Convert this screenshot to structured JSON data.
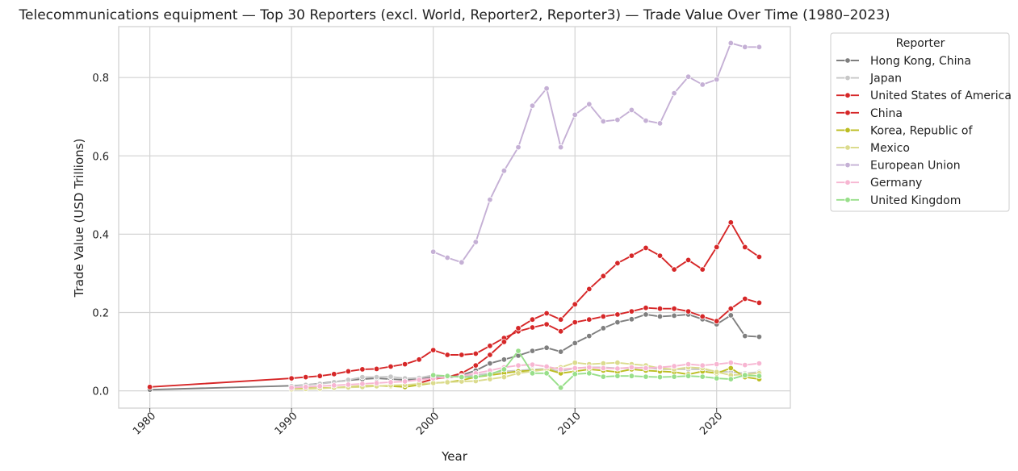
{
  "chart_data": {
    "type": "line",
    "title": "Telecommunications equipment — Top 30 Reporters (excl. World, Reporter2, Reporter3) — Trade Value Over Time (1980–2023)",
    "xlabel": "Year",
    "ylabel": "Trade Value (USD Trillions)",
    "xlim": [
      1977.8,
      2025.2
    ],
    "ylim": [
      -0.044,
      0.93
    ],
    "x_ticks": [
      1980,
      1990,
      2000,
      2010,
      2020
    ],
    "x_tick_labels": [
      "1980",
      "1990",
      "2000",
      "2010",
      "2020"
    ],
    "y_ticks": [
      0.0,
      0.2,
      0.4,
      0.6,
      0.8
    ],
    "y_tick_labels": [
      "0.0",
      "0.2",
      "0.4",
      "0.6",
      "0.8"
    ],
    "grid": true,
    "legend": {
      "title": "Reporter",
      "placement": "outside-top-right"
    },
    "series": [
      {
        "name": "Hong Kong, China",
        "color": "#7f7f7f",
        "x": [
          1980,
          1990,
          1991,
          1992,
          1993,
          1994,
          1995,
          1996,
          1997,
          1998,
          1999,
          2000,
          2001,
          2002,
          2003,
          2004,
          2005,
          2006,
          2007,
          2008,
          2009,
          2010,
          2011,
          2012,
          2013,
          2014,
          2015,
          2016,
          2017,
          2018,
          2019,
          2020,
          2021,
          2022,
          2023
        ],
        "y": [
          0.003,
          0.013,
          0.015,
          0.019,
          0.023,
          0.027,
          0.03,
          0.032,
          0.03,
          0.028,
          0.03,
          0.035,
          0.033,
          0.04,
          0.052,
          0.07,
          0.08,
          0.09,
          0.102,
          0.11,
          0.1,
          0.122,
          0.14,
          0.16,
          0.175,
          0.183,
          0.195,
          0.19,
          0.192,
          0.195,
          0.183,
          0.17,
          0.193,
          0.14,
          0.138
        ]
      },
      {
        "name": "Japan",
        "color": "#c7c7c7",
        "x": [
          1990,
          1991,
          1992,
          1993,
          1994,
          1995,
          1996,
          1997,
          1998,
          1999,
          2000,
          2001,
          2002,
          2003,
          2004,
          2005,
          2006,
          2007,
          2008,
          2009,
          2010,
          2011,
          2012,
          2013,
          2014,
          2015,
          2016,
          2017,
          2018,
          2019,
          2020,
          2021,
          2022,
          2023
        ],
        "y": [
          0.012,
          0.015,
          0.018,
          0.022,
          0.028,
          0.035,
          0.035,
          0.036,
          0.032,
          0.033,
          0.04,
          0.037,
          0.036,
          0.04,
          0.045,
          0.05,
          0.052,
          0.055,
          0.056,
          0.05,
          0.058,
          0.06,
          0.06,
          0.058,
          0.058,
          0.06,
          0.055,
          0.055,
          0.055,
          0.055,
          0.05,
          0.048,
          0.045,
          0.048
        ]
      },
      {
        "name": "United States of America",
        "color": "#d62728",
        "x": [
          1980,
          1990,
          1991,
          1992,
          1993,
          1994,
          1995,
          1996,
          1997,
          1998,
          1999,
          2000,
          2001,
          2002,
          2003,
          2004,
          2005,
          2006,
          2007,
          2008,
          2009,
          2010,
          2011,
          2012,
          2013,
          2014,
          2015,
          2016,
          2017,
          2018,
          2019,
          2020,
          2021,
          2022,
          2023
        ],
        "y": [
          0.01,
          0.032,
          0.035,
          0.038,
          0.043,
          0.05,
          0.055,
          0.056,
          0.062,
          0.068,
          0.08,
          0.104,
          0.092,
          0.092,
          0.095,
          0.115,
          0.135,
          0.152,
          0.162,
          0.17,
          0.152,
          0.175,
          0.182,
          0.19,
          0.195,
          0.203,
          0.212,
          0.21,
          0.21,
          0.203,
          0.19,
          0.178,
          0.21,
          0.235,
          0.225
        ]
      },
      {
        "name": "China",
        "color": "#d62728",
        "x": [
          1999,
          2000,
          2001,
          2002,
          2003,
          2004,
          2005,
          2006,
          2007,
          2008,
          2009,
          2010,
          2011,
          2012,
          2013,
          2014,
          2015,
          2016,
          2017,
          2018,
          2019,
          2020,
          2021,
          2022,
          2023
        ],
        "y": [
          0.02,
          0.03,
          0.035,
          0.045,
          0.065,
          0.092,
          0.125,
          0.16,
          0.182,
          0.198,
          0.182,
          0.221,
          0.26,
          0.293,
          0.326,
          0.345,
          0.365,
          0.345,
          0.31,
          0.334,
          0.31,
          0.367,
          0.43,
          0.367,
          0.342
        ]
      },
      {
        "name": "Korea, Republic of",
        "color": "#bcbd22",
        "x": [
          1990,
          1991,
          1992,
          1993,
          1994,
          1995,
          1996,
          1997,
          1998,
          1999,
          2000,
          2001,
          2002,
          2003,
          2004,
          2005,
          2006,
          2007,
          2008,
          2009,
          2010,
          2011,
          2012,
          2013,
          2014,
          2015,
          2016,
          2017,
          2018,
          2019,
          2020,
          2021,
          2022,
          2023
        ],
        "y": [
          0.005,
          0.006,
          0.007,
          0.008,
          0.01,
          0.012,
          0.013,
          0.012,
          0.01,
          0.015,
          0.02,
          0.022,
          0.027,
          0.035,
          0.04,
          0.045,
          0.05,
          0.052,
          0.055,
          0.045,
          0.05,
          0.055,
          0.052,
          0.048,
          0.055,
          0.052,
          0.05,
          0.048,
          0.042,
          0.05,
          0.045,
          0.058,
          0.035,
          0.03
        ]
      },
      {
        "name": "Mexico",
        "color": "#dbdb8d",
        "x": [
          1990,
          1991,
          1992,
          1993,
          1994,
          1995,
          1996,
          1997,
          1998,
          1999,
          2000,
          2001,
          2002,
          2003,
          2004,
          2005,
          2006,
          2007,
          2008,
          2009,
          2010,
          2011,
          2012,
          2013,
          2014,
          2015,
          2016,
          2017,
          2018,
          2019,
          2020,
          2021,
          2022,
          2023
        ],
        "y": [
          0.004,
          0.005,
          0.006,
          0.008,
          0.009,
          0.01,
          0.012,
          0.014,
          0.015,
          0.018,
          0.02,
          0.022,
          0.024,
          0.025,
          0.03,
          0.035,
          0.045,
          0.05,
          0.055,
          0.06,
          0.072,
          0.068,
          0.07,
          0.072,
          0.068,
          0.065,
          0.058,
          0.055,
          0.06,
          0.058,
          0.048,
          0.04,
          0.042,
          0.045
        ]
      },
      {
        "name": "European Union",
        "color": "#c5b0d5",
        "x": [
          2000,
          2001,
          2002,
          2003,
          2004,
          2005,
          2006,
          2007,
          2008,
          2009,
          2010,
          2011,
          2012,
          2013,
          2014,
          2015,
          2016,
          2017,
          2018,
          2019,
          2020,
          2021,
          2022,
          2023
        ],
        "y": [
          0.355,
          0.34,
          0.328,
          0.38,
          0.488,
          0.562,
          0.622,
          0.728,
          0.772,
          0.622,
          0.705,
          0.732,
          0.688,
          0.692,
          0.717,
          0.69,
          0.683,
          0.76,
          0.802,
          0.782,
          0.795,
          0.888,
          0.878,
          0.878
        ]
      },
      {
        "name": "Germany",
        "color": "#f7b6d2",
        "x": [
          1990,
          1991,
          1992,
          1993,
          1994,
          1995,
          1996,
          1997,
          1998,
          1999,
          2000,
          2001,
          2002,
          2003,
          2004,
          2005,
          2006,
          2007,
          2008,
          2009,
          2010,
          2011,
          2012,
          2013,
          2014,
          2015,
          2016,
          2017,
          2018,
          2019,
          2020,
          2021,
          2022,
          2023
        ],
        "y": [
          0.008,
          0.01,
          0.012,
          0.014,
          0.016,
          0.018,
          0.02,
          0.022,
          0.024,
          0.028,
          0.032,
          0.035,
          0.038,
          0.045,
          0.052,
          0.06,
          0.065,
          0.067,
          0.062,
          0.055,
          0.058,
          0.06,
          0.058,
          0.057,
          0.06,
          0.058,
          0.06,
          0.063,
          0.068,
          0.065,
          0.068,
          0.072,
          0.066,
          0.07
        ]
      },
      {
        "name": "United Kingdom",
        "color": "#98df8a",
        "x": [
          2000,
          2001,
          2002,
          2003,
          2004,
          2005,
          2006,
          2007,
          2008,
          2009,
          2010,
          2011,
          2012,
          2013,
          2014,
          2015,
          2016,
          2017,
          2018,
          2019,
          2020,
          2021,
          2022,
          2023
        ],
        "y": [
          0.04,
          0.038,
          0.035,
          0.035,
          0.042,
          0.055,
          0.102,
          0.045,
          0.045,
          0.008,
          0.043,
          0.045,
          0.036,
          0.038,
          0.038,
          0.036,
          0.035,
          0.036,
          0.038,
          0.036,
          0.032,
          0.03,
          0.04,
          0.038
        ]
      }
    ]
  }
}
